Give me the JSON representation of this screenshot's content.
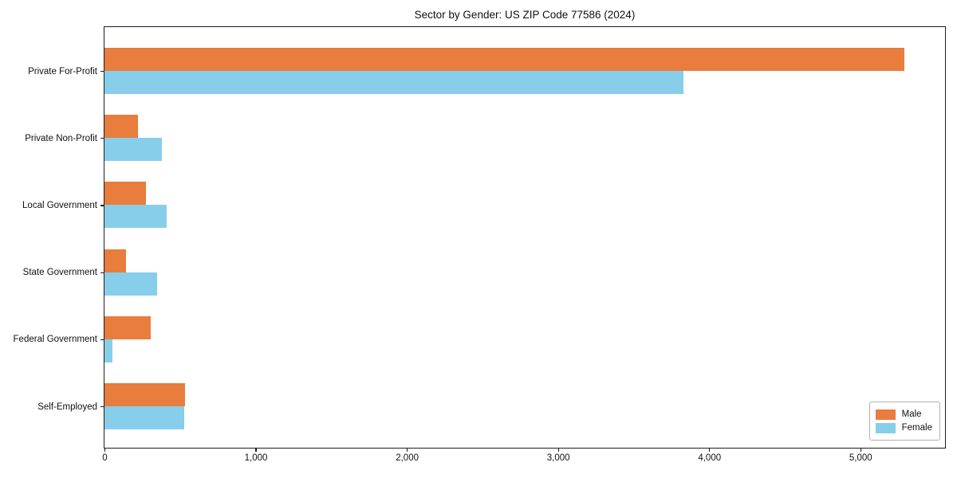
{
  "chart_data": {
    "type": "bar",
    "orientation": "horizontal",
    "title": "Sector by Gender: US ZIP Code 77586 (2024)",
    "categories": [
      "Private For-Profit",
      "Private Non-Profit",
      "Local Government",
      "State Government",
      "Federal Government",
      "Self-Employed"
    ],
    "series": [
      {
        "name": "Male",
        "color": "#e87d3e",
        "values": [
          5290,
          220,
          275,
          145,
          305,
          535
        ]
      },
      {
        "name": "Female",
        "color": "#87ceeb",
        "values": [
          3830,
          380,
          410,
          350,
          55,
          525
        ]
      }
    ],
    "xlabel": "",
    "ylabel": "",
    "xlim": [
      0,
      5555
    ],
    "xticks": [
      {
        "value": 0,
        "label": "0"
      },
      {
        "value": 1000,
        "label": "1,000"
      },
      {
        "value": 2000,
        "label": "2,000"
      },
      {
        "value": 3000,
        "label": "3,000"
      },
      {
        "value": 4000,
        "label": "4,000"
      },
      {
        "value": 5000,
        "label": "5,000"
      }
    ],
    "grid": false,
    "legend": {
      "position": "lower right"
    },
    "colors": {
      "spine": "#1c1c1c",
      "background": "#ffffff"
    }
  }
}
